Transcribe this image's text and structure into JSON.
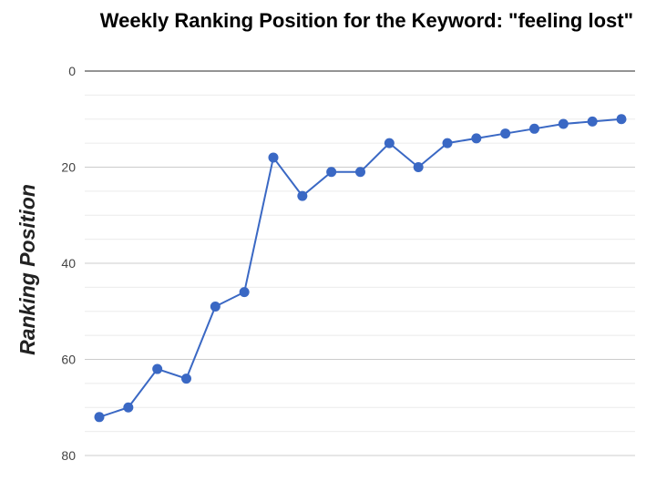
{
  "chart_data": {
    "type": "line",
    "title": "Weekly Ranking Position for the Keyword: \"feeling lost\"",
    "ylabel": "Ranking Position",
    "xlabel": "",
    "ylim": [
      0,
      80
    ],
    "y_reversed": true,
    "y_ticks": [
      0,
      20,
      40,
      60,
      80
    ],
    "grid": true,
    "series": [
      {
        "color": "#3a68c4",
        "values": [
          72,
          70,
          62,
          64,
          49,
          46,
          18,
          26,
          21,
          21,
          15,
          20,
          15,
          14,
          13,
          12,
          11,
          10.5,
          10
        ]
      }
    ]
  }
}
